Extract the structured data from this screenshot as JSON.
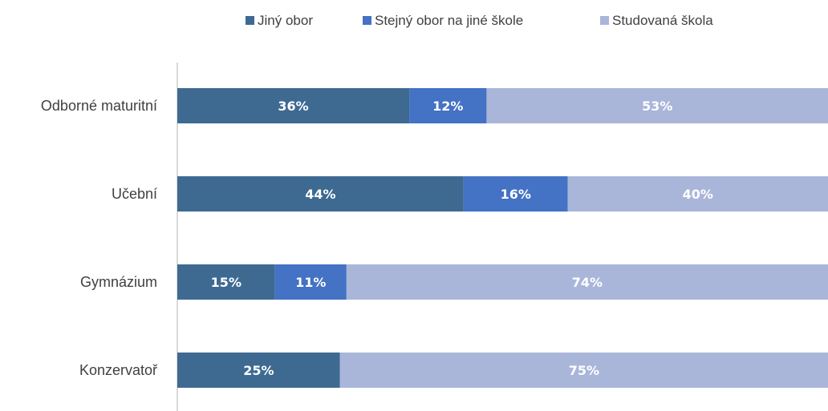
{
  "chart_data": {
    "type": "bar",
    "orientation": "horizontal",
    "stacked": true,
    "categories": [
      "Odborné maturitní",
      "Učební",
      "Gymnázium",
      "Konzervatoř"
    ],
    "series": [
      {
        "name": "Jiný obor",
        "color": "#3E6A92",
        "values": [
          36,
          44,
          15,
          25
        ],
        "labels": [
          "36%",
          "44%",
          "15%",
          "25%"
        ]
      },
      {
        "name": "Stejný obor na jiné škole",
        "color": "#4472C4",
        "values": [
          12,
          16,
          11,
          0
        ],
        "labels": [
          "12%",
          "16%",
          "11%",
          ""
        ]
      },
      {
        "name": "Studovaná škola",
        "color": "#A9B6DA",
        "values": [
          53,
          40,
          74,
          75
        ],
        "labels": [
          "53%",
          "40%",
          "74%",
          "75%"
        ]
      }
    ],
    "legend_position": "top",
    "grid": false
  }
}
